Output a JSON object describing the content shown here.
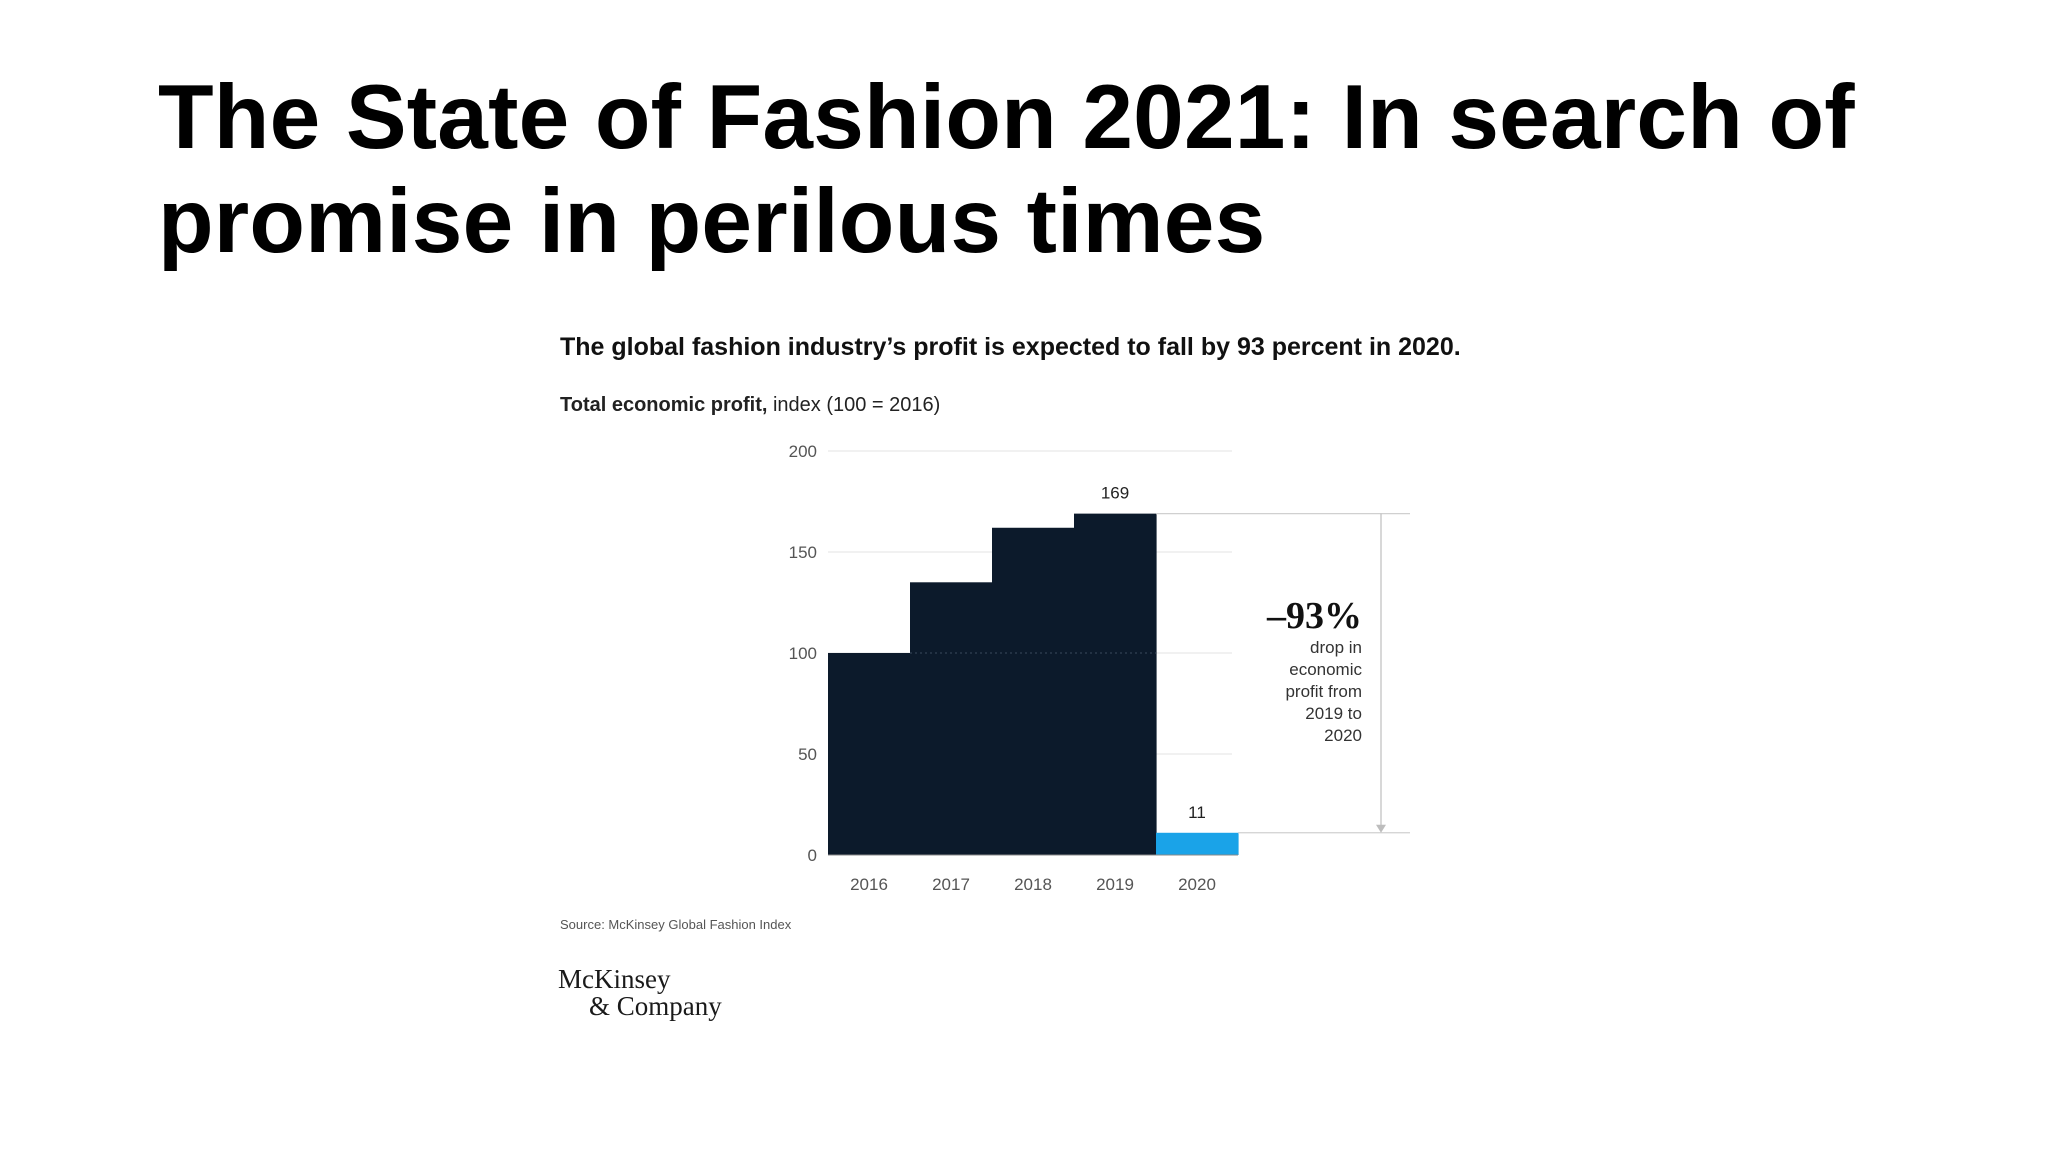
{
  "slide": {
    "title": "The State of Fashion 2021: In search of promise in perilous times"
  },
  "chart_data": {
    "type": "bar",
    "title": "The global fashion industry’s profit is expected to fall by 93 percent in 2020.",
    "subtitle_bold": "Total economic profit,",
    "subtitle_rest": " index (100 = 2016)",
    "categories": [
      "2016",
      "2017",
      "2018",
      "2019",
      "2020"
    ],
    "values": [
      100,
      135,
      162,
      169,
      11
    ],
    "data_labels": [
      "",
      "",
      "",
      "169",
      "11"
    ],
    "ylim": [
      0,
      200
    ],
    "yticks": [
      0,
      50,
      100,
      150,
      200
    ],
    "grid": true,
    "colors": {
      "bar": "#0c1a2b",
      "highlight": "#1aa3e8"
    },
    "highlight_index": 4,
    "annotation": {
      "value": "–93%",
      "lines": [
        "drop in",
        "economic",
        "profit from",
        "2019 to",
        "2020"
      ]
    },
    "source": "Source: McKinsey Global Fashion Index"
  },
  "logo": {
    "line1": "McKinsey",
    "line2": "& Company"
  }
}
